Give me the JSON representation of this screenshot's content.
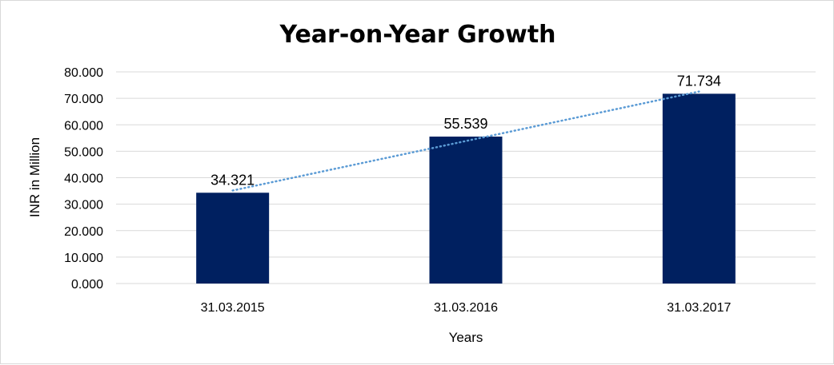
{
  "chart_data": {
    "type": "bar",
    "title": "Year-on-Year Growth",
    "xlabel": "Years",
    "ylabel": "INR in Million",
    "categories": [
      "31.03.2015",
      "31.03.2016",
      "31.03.2017"
    ],
    "values": [
      34.321,
      55.539,
      71.734
    ],
    "data_labels": [
      "34.321",
      "55.539",
      "71.734"
    ],
    "ylim": [
      0,
      80
    ],
    "y_ticks": [
      0,
      10,
      20,
      30,
      40,
      50,
      60,
      70,
      80
    ],
    "y_tick_labels": [
      "0.000",
      "10.000",
      "20.000",
      "30.000",
      "40.000",
      "50.000",
      "60.000",
      "70.000",
      "80.000"
    ],
    "grid": true,
    "legend": "none",
    "trendline": "linear",
    "colors": {
      "bar": "#002060",
      "trendline": "#5b9bd5",
      "grid": "#d9d9d9"
    }
  }
}
